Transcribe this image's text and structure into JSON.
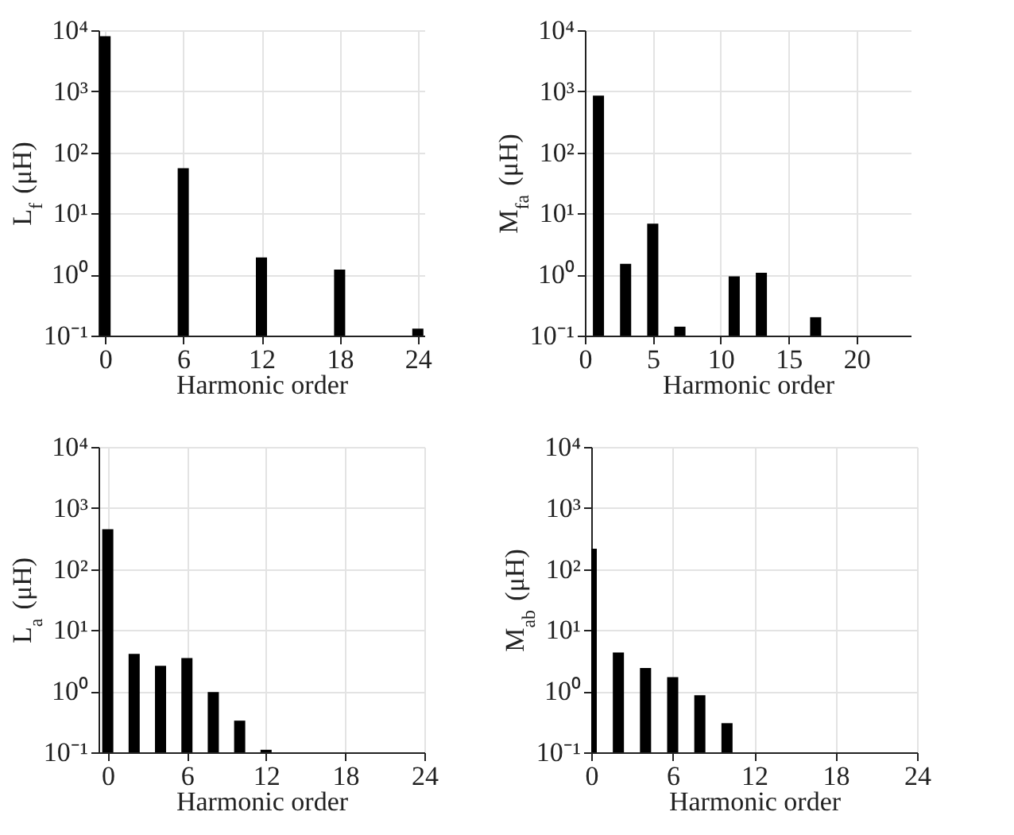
{
  "chart_data": [
    {
      "type": "bar",
      "xlabel": "Harmonic order",
      "ylabel": "L$_{f}$ (μH)",
      "log": "y",
      "grid": true,
      "x": [
        0,
        6,
        12,
        18,
        24
      ],
      "values": [
        8000,
        55,
        1.9,
        1.2,
        0.13
      ],
      "color": "#000000",
      "xlim": [
        -0.5,
        24.5
      ],
      "xticks": [
        0,
        6,
        12,
        18,
        24
      ],
      "ylim": [
        0.1,
        10000
      ],
      "yticks": [
        {
          "value": 0.1,
          "label": "10⁻¹"
        },
        {
          "value": 1,
          "label": "10⁰"
        },
        {
          "value": 10,
          "label": "10¹"
        },
        {
          "value": 100,
          "label": "10²"
        },
        {
          "value": 1000,
          "label": "10³"
        },
        {
          "value": 10000,
          "label": "10⁴"
        }
      ]
    },
    {
      "type": "bar",
      "xlabel": "Harmonic order",
      "ylabel": "M$_{fa}$ (μH)",
      "log": "y",
      "grid": true,
      "x": [
        1,
        3,
        5,
        7,
        11,
        13,
        17
      ],
      "values": [
        850,
        1.5,
        6.8,
        0.14,
        0.93,
        1.07,
        0.2
      ],
      "color": "#000000",
      "xlim": [
        0,
        24
      ],
      "xticks": [
        0,
        5,
        10,
        15,
        20
      ],
      "ylim": [
        0.1,
        10000
      ],
      "yticks": [
        {
          "value": 0.1,
          "label": "10⁻¹"
        },
        {
          "value": 1,
          "label": "10⁰"
        },
        {
          "value": 10,
          "label": "10¹"
        },
        {
          "value": 100,
          "label": "10²"
        },
        {
          "value": 1000,
          "label": "10³"
        },
        {
          "value": 10000,
          "label": "10⁴"
        }
      ]
    },
    {
      "type": "bar",
      "xlabel": "Harmonic order",
      "ylabel": "L$_{a}$ (μH)",
      "log": "y",
      "grid": true,
      "x": [
        0,
        2,
        4,
        6,
        8,
        10,
        12
      ],
      "values": [
        450,
        4.1,
        2.6,
        3.5,
        0.97,
        0.33,
        0.11
      ],
      "color": "#000000",
      "xlim": [
        -0.7,
        24
      ],
      "xticks": [
        0,
        6,
        12,
        18,
        24
      ],
      "ylim": [
        0.1,
        10000
      ],
      "yticks": [
        {
          "value": 0.1,
          "label": "10⁻¹"
        },
        {
          "value": 1,
          "label": "10⁰"
        },
        {
          "value": 10,
          "label": "10¹"
        },
        {
          "value": 100,
          "label": "10²"
        },
        {
          "value": 1000,
          "label": "10³"
        },
        {
          "value": 10000,
          "label": "10⁴"
        }
      ]
    },
    {
      "type": "bar",
      "xlabel": "Harmonic order",
      "ylabel": "M$_{ab}$ (μH)",
      "log": "y",
      "grid": true,
      "x": [
        0,
        2,
        4,
        6,
        8,
        10
      ],
      "values": [
        215,
        4.3,
        2.4,
        1.7,
        0.86,
        0.3
      ],
      "color": "#000000",
      "xlim": [
        0,
        24
      ],
      "xticks": [
        0,
        6,
        12,
        18,
        24
      ],
      "ylim": [
        0.1,
        10000
      ],
      "yticks": [
        {
          "value": 0.1,
          "label": "10⁻¹"
        },
        {
          "value": 1,
          "label": "10⁰"
        },
        {
          "value": 10,
          "label": "10¹"
        },
        {
          "value": 100,
          "label": "10²"
        },
        {
          "value": 1000,
          "label": "10³"
        },
        {
          "value": 10000,
          "label": "10⁴"
        }
      ]
    }
  ]
}
